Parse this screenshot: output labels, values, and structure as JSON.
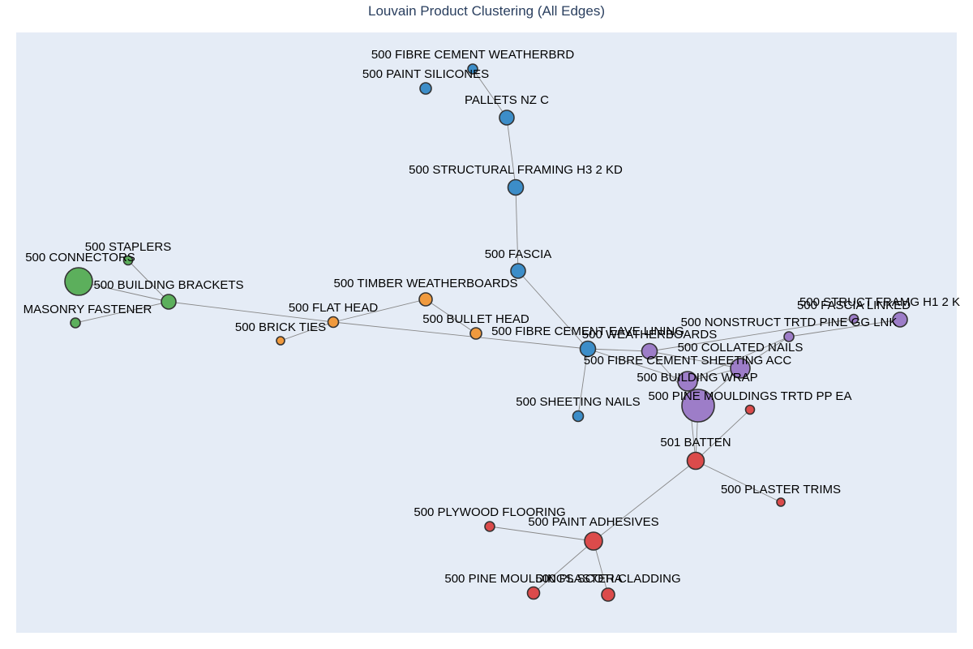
{
  "title": "Louvain Product Clustering (All Edges)",
  "colors": {
    "plot_bg": "#E5ECF6",
    "edge": "#888888",
    "node_outline": "#333333",
    "clusters": {
      "blue": "#3C8DC8",
      "green": "#5CAF5C",
      "orange": "#F09A3E",
      "purple": "#9D7DC8",
      "red": "#DB4B4B"
    }
  },
  "nodes": [
    {
      "id": "fibre_cement_weatherbrd",
      "label": "500 FIBRE CEMENT WEATHERBRD",
      "cluster": "blue"
    },
    {
      "id": "paint_silicones",
      "label": "500 PAINT SILICONES",
      "cluster": "blue"
    },
    {
      "id": "pallets_nz_c",
      "label": "PALLETS NZ C",
      "cluster": "blue"
    },
    {
      "id": "structural_framing",
      "label": "500 STRUCTURAL FRAMING H3 2 KD",
      "cluster": "blue"
    },
    {
      "id": "fascia",
      "label": "500 FASCIA",
      "cluster": "blue"
    },
    {
      "id": "fc_eave_lining",
      "label": "500 FIBRE CEMENT EAVE LINING",
      "cluster": "blue"
    },
    {
      "id": "sheeting_nails",
      "label": "500 SHEETING NAILS",
      "cluster": "blue"
    },
    {
      "id": "staplers",
      "label": "500 STAPLERS",
      "cluster": "green"
    },
    {
      "id": "connectors",
      "label": "500 CONNECTORS",
      "cluster": "green"
    },
    {
      "id": "building_brackets",
      "label": "500 BUILDING BRACKETS",
      "cluster": "green"
    },
    {
      "id": "masonry_fastener",
      "label": "MASONRY FASTENER",
      "cluster": "green"
    },
    {
      "id": "timber_weatherboards",
      "label": "500 TIMBER WEATHERBOARDS",
      "cluster": "orange"
    },
    {
      "id": "flat_head",
      "label": "500 FLAT HEAD",
      "cluster": "orange"
    },
    {
      "id": "brick_ties",
      "label": "500 BRICK TIES",
      "cluster": "orange"
    },
    {
      "id": "bullet_head",
      "label": "500 BULLET HEAD",
      "cluster": "orange"
    },
    {
      "id": "weatherboards",
      "label": "500 WEATHERBOARDS",
      "cluster": "purple"
    },
    {
      "id": "fc_sheeting_acc",
      "label": "500 FIBRE CEMENT SHEETING ACC",
      "cluster": "purple"
    },
    {
      "id": "collated_nails",
      "label": "500 COLLATED NAILS",
      "cluster": "purple"
    },
    {
      "id": "building_wrap",
      "label": "500 BUILDING WRAP",
      "cluster": "purple"
    },
    {
      "id": "pine_mouldings_trtd",
      "label": "500 PINE MOULDINGS TRTD PP EA",
      "cluster": "purple"
    },
    {
      "id": "nonstruct_trtd_pine",
      "label": "500 NONSTRUCT TRTD PINE GG LNK",
      "cluster": "purple"
    },
    {
      "id": "struct_framg_h1",
      "label": "500 STRUCT FRAMG H1 2 K",
      "cluster": "purple"
    },
    {
      "id": "fascia_linked",
      "label": "500 FASCIA LINKED",
      "cluster": "purple"
    },
    {
      "id": "batten",
      "label": "501 BATTEN",
      "cluster": "red"
    },
    {
      "id": "red_small",
      "label": "",
      "cluster": "red"
    },
    {
      "id": "plaster_trims",
      "label": "500 PLASTER TRIMS",
      "cluster": "red"
    },
    {
      "id": "plywood_flooring",
      "label": "500 PLYWOOD FLOORING",
      "cluster": "red"
    },
    {
      "id": "paint_adhesives",
      "label": "500 PAINT ADHESIVES",
      "cluster": "red"
    },
    {
      "id": "pine_mouldings_scotia",
      "label": "500 PINE MOULDINGS SCOTIA",
      "cluster": "red"
    },
    {
      "id": "plaster_cladding",
      "label": "500 PLASTER CLADDING",
      "cluster": "red"
    }
  ],
  "edges": [
    [
      "fibre_cement_weatherbrd",
      "pallets_nz_c"
    ],
    [
      "pallets_nz_c",
      "structural_framing"
    ],
    [
      "structural_framing",
      "fascia"
    ],
    [
      "fascia",
      "fc_eave_lining"
    ],
    [
      "fc_eave_lining",
      "sheeting_nails"
    ],
    [
      "fc_eave_lining",
      "weatherboards"
    ],
    [
      "fc_eave_lining",
      "building_wrap"
    ],
    [
      "staplers",
      "building_brackets"
    ],
    [
      "connectors",
      "building_brackets"
    ],
    [
      "masonry_fastener",
      "building_brackets"
    ],
    [
      "building_brackets",
      "flat_head"
    ],
    [
      "flat_head",
      "timber_weatherboards"
    ],
    [
      "flat_head",
      "brick_ties"
    ],
    [
      "flat_head",
      "fc_eave_lining"
    ],
    [
      "timber_weatherboards",
      "bullet_head"
    ],
    [
      "weatherboards",
      "fascia_linked"
    ],
    [
      "weatherboards",
      "pine_mouldings_trtd"
    ],
    [
      "weatherboards",
      "fc_sheeting_acc"
    ],
    [
      "fc_sheeting_acc",
      "nonstruct_trtd_pine"
    ],
    [
      "fc_sheeting_acc",
      "building_wrap"
    ],
    [
      "fc_sheeting_acc",
      "pine_mouldings_trtd"
    ],
    [
      "nonstruct_trtd_pine",
      "struct_framg_h1"
    ],
    [
      "nonstruct_trtd_pine",
      "building_wrap"
    ],
    [
      "building_wrap",
      "pine_mouldings_trtd"
    ],
    [
      "building_wrap",
      "batten"
    ],
    [
      "pine_mouldings_trtd",
      "batten"
    ],
    [
      "red_small",
      "batten"
    ],
    [
      "batten",
      "plaster_trims"
    ],
    [
      "batten",
      "paint_adhesives"
    ],
    [
      "plywood_flooring",
      "paint_adhesives"
    ],
    [
      "paint_adhesives",
      "pine_mouldings_scotia"
    ],
    [
      "paint_adhesives",
      "plaster_cladding"
    ]
  ]
}
